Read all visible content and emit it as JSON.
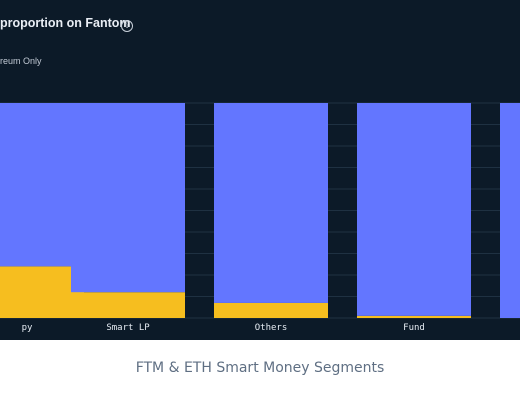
{
  "panel": {
    "title": "proportion on Fantom",
    "subtitle": "reum Only"
  },
  "caption": "FTM & ETH Smart Money Segments",
  "colors": {
    "background": "#0c1a28",
    "blue": "#6376ff",
    "yellow": "#f6be1f"
  },
  "chart_data": {
    "type": "bar",
    "stacked": true,
    "normalized": true,
    "categories": [
      "py",
      "Smart LP",
      "Others",
      "Fund",
      ""
    ],
    "series": [
      {
        "color": "#f6be1f",
        "values": [
          0.24,
          0.12,
          0.07,
          0.01,
          0
        ]
      },
      {
        "color": "#6376ff",
        "values": [
          0.76,
          0.88,
          0.93,
          0.99,
          1
        ]
      }
    ],
    "ylim": [
      0,
      1
    ],
    "grid": true
  }
}
